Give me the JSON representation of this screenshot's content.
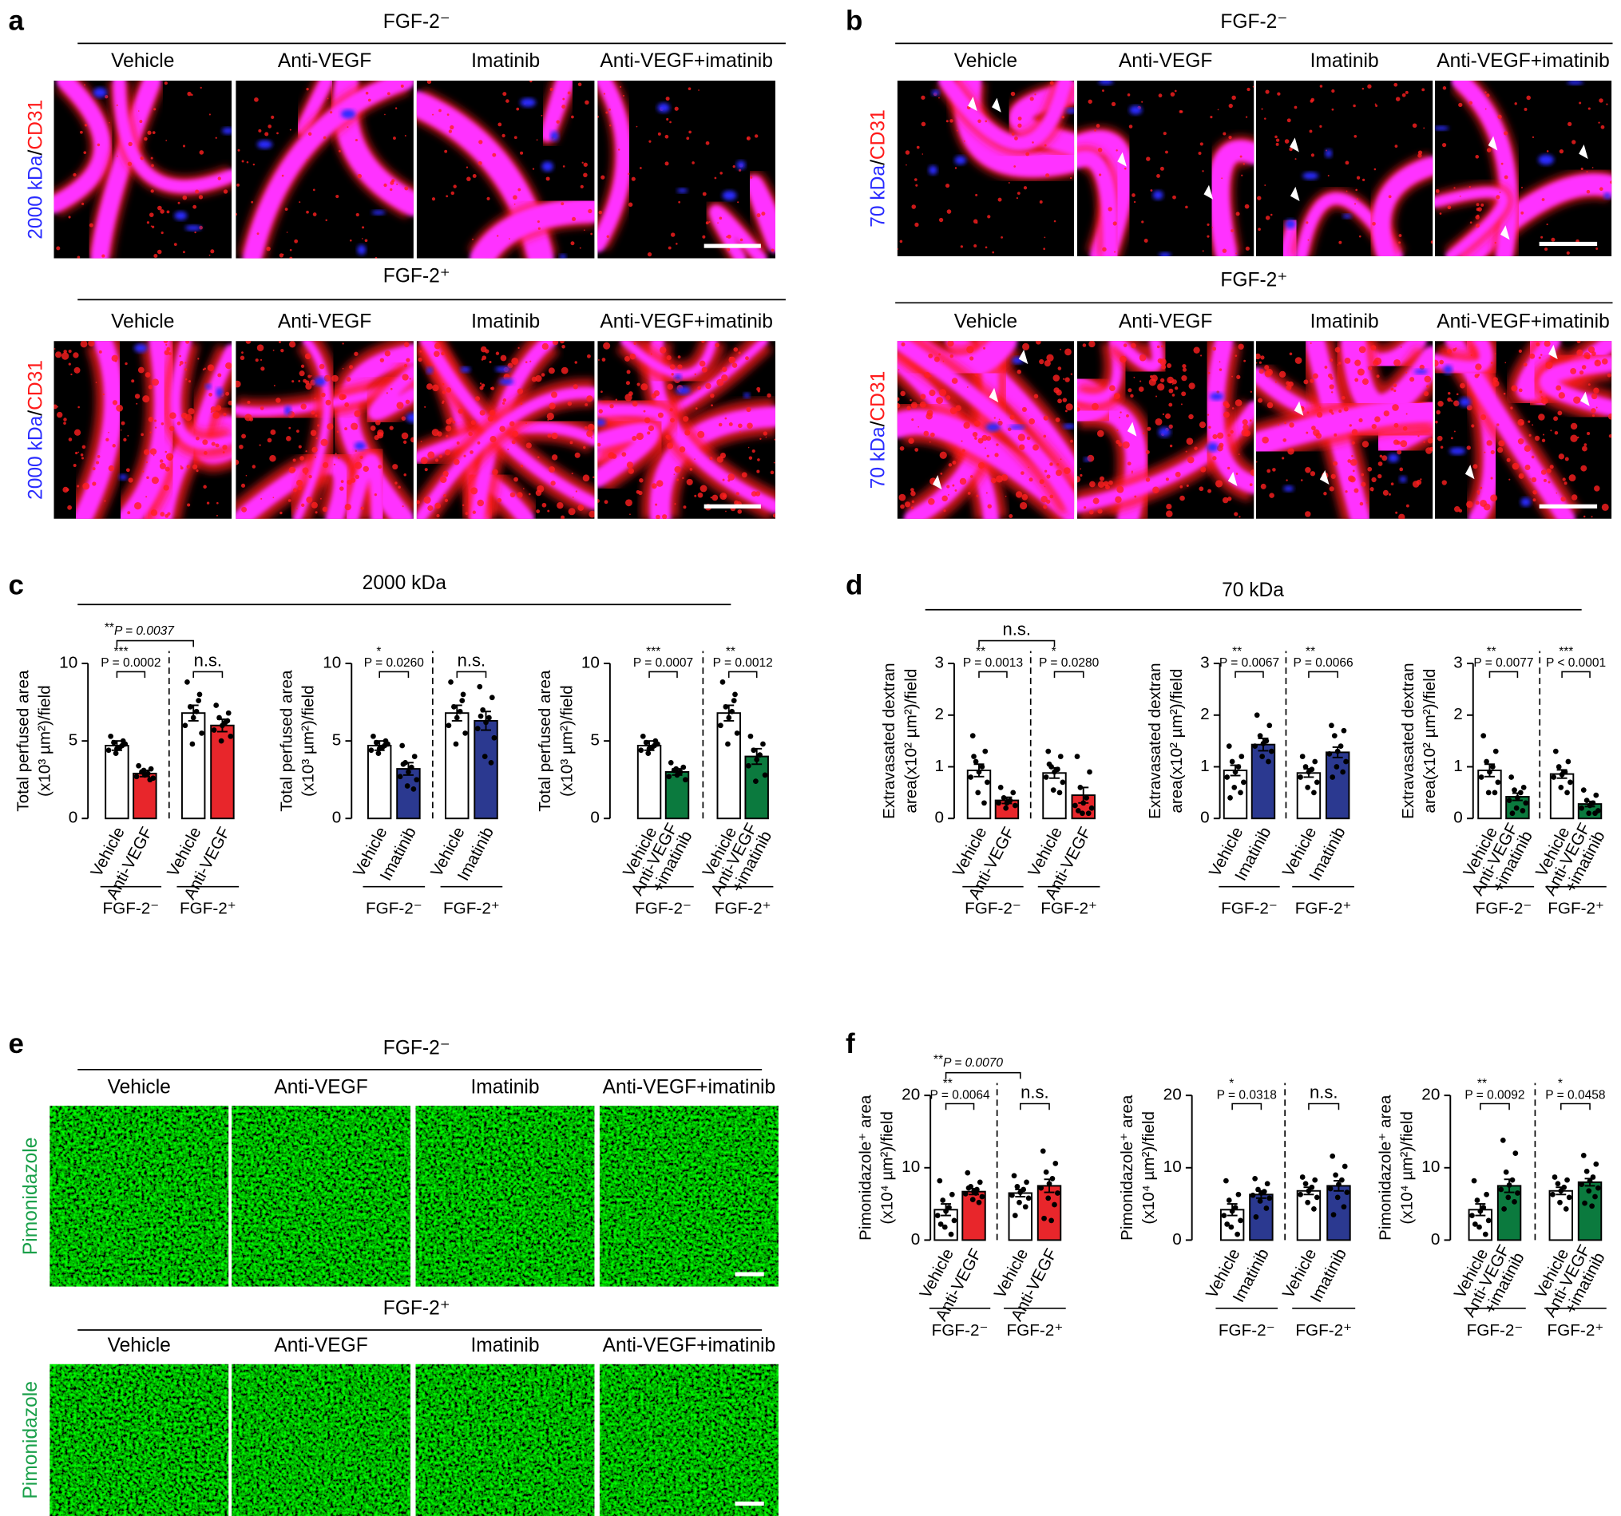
{
  "figure_panels": {
    "a": {
      "letter": "a",
      "stain": [
        "2000 kDa",
        "/",
        "CD31"
      ],
      "rows": [
        {
          "condition": "FGF-2⁻",
          "treatments": [
            "Vehicle",
            "Anti-VEGF",
            "Imatinib",
            "Anti-VEGF+imatinib"
          ]
        },
        {
          "condition": "FGF-2⁺",
          "treatments": [
            "Vehicle",
            "Anti-VEGF",
            "Imatinib",
            "Anti-VEGF+imatinib"
          ]
        }
      ]
    },
    "b": {
      "letter": "b",
      "stain": [
        "70 kDa",
        "/",
        "CD31"
      ],
      "rows": [
        {
          "condition": "FGF-2⁻",
          "treatments": [
            "Vehicle",
            "Anti-VEGF",
            "Imatinib",
            "Anti-VEGF+imatinib"
          ]
        },
        {
          "condition": "FGF-2⁺",
          "treatments": [
            "Vehicle",
            "Anti-VEGF",
            "Imatinib",
            "Anti-VEGF+imatinib"
          ]
        }
      ]
    },
    "c": {
      "letter": "c",
      "title": "2000 kDa"
    },
    "d": {
      "letter": "d",
      "title": "70 kDa"
    },
    "e": {
      "letter": "e",
      "stain": [
        "Pimonidazole"
      ],
      "rows": [
        {
          "condition": "FGF-2⁻",
          "treatments": [
            "Vehicle",
            "Anti-VEGF",
            "Imatinib",
            "Anti-VEGF+imatinib"
          ]
        },
        {
          "condition": "FGF-2⁺",
          "treatments": [
            "Vehicle",
            "Anti-VEGF",
            "Imatinib",
            "Anti-VEGF+imatinib"
          ]
        }
      ]
    },
    "f": {
      "letter": "f"
    }
  },
  "chart_data": [
    {
      "type": "bar",
      "ylabel": [
        "Total perfused area",
        "(x10³ µm²)/field"
      ],
      "categories": [
        [
          "Vehicle"
        ],
        [
          "Anti-VEGF"
        ],
        [
          "Vehicle"
        ],
        [
          "Anti-VEGF"
        ]
      ],
      "groups": [
        "FGF-2⁻",
        "FGF-2⁺"
      ],
      "colors": [
        "#ffffff",
        "#e8262b",
        "#ffffff",
        "#e8262b"
      ],
      "values": [
        4.7,
        2.9,
        6.8,
        6.0
      ],
      "errors": [
        0.3,
        0.2,
        0.5,
        0.4
      ],
      "points": [
        [
          5.3,
          5.0,
          4.9,
          4.6,
          4.5,
          4.4,
          4.8,
          4.2,
          4.7
        ],
        [
          3.4,
          3.2,
          3.0,
          2.9,
          2.8,
          2.7,
          2.6,
          3.1,
          2.5
        ],
        [
          8.8,
          8.0,
          7.2,
          6.9,
          6.5,
          6.0,
          5.5,
          4.8,
          7.6
        ],
        [
          7.3,
          6.8,
          6.5,
          6.2,
          6.0,
          5.7,
          5.3,
          5.0,
          6.3
        ]
      ],
      "ylim": [
        0,
        10
      ],
      "yticks": [
        0,
        5,
        10
      ],
      "annotations": [
        {
          "pair": [
            0,
            1
          ],
          "stars": "***",
          "text": "P = 0.0002"
        },
        {
          "pair": [
            2,
            3
          ],
          "text": "n.s."
        },
        {
          "pair": [
            0,
            2
          ],
          "stars": "**",
          "text": "P = 0.0037"
        }
      ]
    },
    {
      "type": "bar",
      "ylabel": [
        "Total perfused area",
        "(x10³ µm²)/field"
      ],
      "categories": [
        [
          "Vehicle"
        ],
        [
          "Imatinib"
        ],
        [
          "Vehicle"
        ],
        [
          "Imatinib"
        ]
      ],
      "groups": [
        "FGF-2⁻",
        "FGF-2⁺"
      ],
      "colors": [
        "#ffffff",
        "#2b3990",
        "#ffffff",
        "#2b3990"
      ],
      "values": [
        4.7,
        3.2,
        6.8,
        6.3
      ],
      "errors": [
        0.3,
        0.4,
        0.5,
        0.6
      ],
      "points": [
        [
          5.3,
          5.0,
          4.9,
          4.6,
          4.5,
          4.4,
          4.8,
          4.2,
          4.7
        ],
        [
          4.7,
          4.0,
          3.6,
          3.3,
          3.0,
          2.7,
          2.5,
          2.1,
          1.9,
          3.5
        ],
        [
          8.8,
          8.0,
          7.2,
          6.9,
          6.5,
          6.0,
          5.5,
          4.8,
          7.6
        ],
        [
          8.5,
          7.8,
          7.0,
          6.5,
          6.2,
          5.8,
          5.2,
          4.0,
          3.6,
          6.6
        ]
      ],
      "ylim": [
        0,
        10
      ],
      "yticks": [
        0,
        5,
        10
      ],
      "annotations": [
        {
          "pair": [
            0,
            1
          ],
          "stars": "*",
          "text": "P = 0.0260"
        },
        {
          "pair": [
            2,
            3
          ],
          "text": "n.s."
        }
      ]
    },
    {
      "type": "bar",
      "ylabel": [
        "Total perfused area",
        "(x10³ µm²)/field"
      ],
      "categories": [
        [
          "Vehicle"
        ],
        [
          "Anti-VEGF",
          "+imatinib"
        ],
        [
          "Vehicle"
        ],
        [
          "Anti-VEGF",
          "+imatinib"
        ]
      ],
      "groups": [
        "FGF-2⁻",
        "FGF-2⁺"
      ],
      "colors": [
        "#ffffff",
        "#0b7a3e",
        "#ffffff",
        "#0b7a3e"
      ],
      "values": [
        4.7,
        3.0,
        6.8,
        4.0
      ],
      "errors": [
        0.3,
        0.2,
        0.5,
        0.5
      ],
      "points": [
        [
          5.3,
          5.0,
          4.9,
          4.6,
          4.5,
          4.4,
          4.8,
          4.2,
          4.7
        ],
        [
          3.6,
          3.3,
          3.1,
          3.0,
          2.8,
          2.7,
          2.5,
          3.2
        ],
        [
          8.8,
          8.0,
          7.2,
          6.9,
          6.5,
          6.0,
          5.5,
          4.8,
          7.6
        ],
        [
          5.3,
          4.8,
          4.4,
          4.1,
          3.8,
          3.4,
          2.8,
          2.4
        ]
      ],
      "ylim": [
        0,
        10
      ],
      "yticks": [
        0,
        5,
        10
      ],
      "annotations": [
        {
          "pair": [
            0,
            1
          ],
          "stars": "***",
          "text": "P = 0.0007"
        },
        {
          "pair": [
            2,
            3
          ],
          "stars": "**",
          "text": "P = 0.0012"
        }
      ]
    },
    {
      "type": "bar",
      "ylabel": [
        "Extravasated dextran",
        "area(x10² µm²)/field"
      ],
      "categories": [
        [
          "Vehicle"
        ],
        [
          "Anti-VEGF"
        ],
        [
          "Vehicle"
        ],
        [
          "Anti-VEGF"
        ]
      ],
      "groups": [
        "FGF-2⁻",
        "FGF-2⁺"
      ],
      "colors": [
        "#ffffff",
        "#e8262b",
        "#ffffff",
        "#e8262b"
      ],
      "values": [
        0.93,
        0.35,
        0.88,
        0.45
      ],
      "errors": [
        0.12,
        0.06,
        0.1,
        0.15
      ],
      "points": [
        [
          1.6,
          1.3,
          1.1,
          1.0,
          0.9,
          0.8,
          0.7,
          0.5,
          0.3,
          1.2
        ],
        [
          0.6,
          0.5,
          0.4,
          0.35,
          0.3,
          0.3,
          0.25,
          0.2
        ],
        [
          1.3,
          1.2,
          1.0,
          0.95,
          0.9,
          0.8,
          0.7,
          0.55,
          0.5,
          1.05
        ],
        [
          1.2,
          0.9,
          0.6,
          0.4,
          0.3,
          0.25,
          0.2,
          0.1,
          0.1,
          0.15
        ]
      ],
      "ylim": [
        0,
        3
      ],
      "yticks": [
        0,
        1,
        2,
        3
      ],
      "annotations": [
        {
          "pair": [
            0,
            1
          ],
          "stars": "**",
          "text": "P = 0.0013"
        },
        {
          "pair": [
            2,
            3
          ],
          "stars": "*",
          "text": "P = 0.0280"
        },
        {
          "pair": [
            0,
            2
          ],
          "text": "n.s."
        }
      ]
    },
    {
      "type": "bar",
      "ylabel": [
        "Extravasated dextran",
        "area(x10² µm²)/field"
      ],
      "categories": [
        [
          "Vehicle"
        ],
        [
          "Imatinib"
        ],
        [
          "Vehicle"
        ],
        [
          "Imatinib"
        ]
      ],
      "groups": [
        "FGF-2⁻",
        "FGF-2⁺"
      ],
      "colors": [
        "#ffffff",
        "#2b3990",
        "#ffffff",
        "#2b3990"
      ],
      "values": [
        0.93,
        1.43,
        0.88,
        1.28
      ],
      "errors": [
        0.1,
        0.12,
        0.08,
        0.1
      ],
      "points": [
        [
          1.4,
          1.2,
          1.1,
          1.0,
          0.9,
          0.8,
          0.7,
          0.6,
          0.5,
          0.4
        ],
        [
          2.0,
          1.8,
          1.6,
          1.5,
          1.45,
          1.4,
          1.3,
          1.2,
          1.1
        ],
        [
          1.2,
          1.1,
          1.0,
          0.95,
          0.9,
          0.8,
          0.7,
          0.6,
          0.5
        ],
        [
          1.8,
          1.7,
          1.6,
          1.4,
          1.3,
          1.25,
          1.1,
          1.0,
          0.9,
          0.8
        ]
      ],
      "ylim": [
        0,
        3
      ],
      "yticks": [
        0,
        1,
        2,
        3
      ],
      "annotations": [
        {
          "pair": [
            0,
            1
          ],
          "stars": "**",
          "text": "P = 0.0067"
        },
        {
          "pair": [
            2,
            3
          ],
          "stars": "**",
          "text": "P = 0.0066"
        }
      ]
    },
    {
      "type": "bar",
      "ylabel": [
        "Extravasated dextran",
        "area(x10² µm²)/field"
      ],
      "categories": [
        [
          "Vehicle"
        ],
        [
          "Anti-VEGF",
          "+imatinib"
        ],
        [
          "Vehicle"
        ],
        [
          "Anti-VEGF",
          "+imatinib"
        ]
      ],
      "groups": [
        "FGF-2⁻",
        "FGF-2⁺"
      ],
      "colors": [
        "#ffffff",
        "#0b7a3e",
        "#ffffff",
        "#0b7a3e"
      ],
      "values": [
        0.93,
        0.42,
        0.86,
        0.28
      ],
      "errors": [
        0.12,
        0.07,
        0.08,
        0.05
      ],
      "points": [
        [
          1.6,
          1.3,
          1.1,
          1.0,
          0.9,
          0.8,
          0.7,
          0.5,
          0.5
        ],
        [
          0.8,
          0.6,
          0.55,
          0.5,
          0.4,
          0.35,
          0.3,
          0.2,
          0.15,
          0.1
        ],
        [
          1.3,
          1.1,
          1.0,
          0.9,
          0.85,
          0.8,
          0.7,
          0.6,
          0.5
        ],
        [
          0.55,
          0.45,
          0.35,
          0.3,
          0.25,
          0.2,
          0.15,
          0.1,
          0.1
        ]
      ],
      "ylim": [
        0,
        3
      ],
      "yticks": [
        0,
        1,
        2,
        3
      ],
      "annotations": [
        {
          "pair": [
            0,
            1
          ],
          "stars": "**",
          "text": "P = 0.0077"
        },
        {
          "pair": [
            2,
            3
          ],
          "stars": "***",
          "text": "P < 0.0001"
        }
      ]
    },
    {
      "type": "bar",
      "ylabel": [
        "Pimonidazole⁺ area",
        "(x10⁴ µm²)/field"
      ],
      "categories": [
        [
          "Vehicle"
        ],
        [
          "Anti-VEGF"
        ],
        [
          "Vehicle"
        ],
        [
          "Anti-VEGF"
        ]
      ],
      "groups": [
        "FGF-2⁻",
        "FGF-2⁺"
      ],
      "colors": [
        "#ffffff",
        "#e8262b",
        "#ffffff",
        "#e8262b"
      ],
      "values": [
        4.2,
        6.7,
        6.5,
        7.5
      ],
      "errors": [
        0.8,
        0.4,
        0.5,
        0.9
      ],
      "points": [
        [
          8.2,
          6.3,
          5.5,
          4.5,
          4.0,
          3.4,
          2.7,
          1.8,
          0.8,
          2.2
        ],
        [
          9.3,
          8.0,
          7.4,
          7.0,
          6.7,
          6.4,
          6.0,
          5.6,
          5.2,
          7.2,
          6.5
        ],
        [
          8.9,
          8.0,
          7.4,
          7.0,
          6.6,
          6.2,
          5.8,
          5.2,
          4.6,
          3.4
        ],
        [
          12.3,
          10.6,
          9.4,
          8.5,
          7.8,
          7.2,
          6.5,
          5.8,
          4.9,
          3.0,
          2.7
        ]
      ],
      "ylim": [
        0,
        20
      ],
      "yticks": [
        0,
        10,
        20
      ],
      "annotations": [
        {
          "pair": [
            0,
            1
          ],
          "stars": "**",
          "text": "P = 0.0064"
        },
        {
          "pair": [
            2,
            3
          ],
          "text": "n.s."
        },
        {
          "pair": [
            0,
            2
          ],
          "stars": "**",
          "text": "P = 0.0070"
        }
      ]
    },
    {
      "type": "bar",
      "ylabel": [
        "Pimonidazole⁺ area",
        "(x10⁴ µm²)/field"
      ],
      "categories": [
        [
          "Vehicle"
        ],
        [
          "Imatinib"
        ],
        [
          "Vehicle"
        ],
        [
          "Imatinib"
        ]
      ],
      "groups": [
        "FGF-2⁻",
        "FGF-2⁺"
      ],
      "colors": [
        "#ffffff",
        "#2b3990",
        "#ffffff",
        "#2b3990"
      ],
      "values": [
        4.2,
        6.3,
        6.8,
        7.5
      ],
      "errors": [
        0.8,
        0.5,
        0.5,
        0.7
      ],
      "points": [
        [
          8.2,
          6.3,
          5.5,
          4.5,
          4.0,
          3.4,
          2.7,
          1.8,
          0.8,
          2.2
        ],
        [
          8.5,
          7.8,
          7.0,
          6.7,
          6.5,
          6.2,
          5.8,
          5.4,
          4.4,
          3.2
        ],
        [
          8.7,
          8.3,
          7.8,
          7.3,
          6.8,
          6.3,
          5.9,
          5.2,
          4.3
        ],
        [
          11.6,
          10.2,
          9.0,
          8.3,
          7.7,
          7.1,
          6.6,
          5.9,
          4.6,
          3.5
        ]
      ],
      "ylim": [
        0,
        20
      ],
      "yticks": [
        0,
        10,
        20
      ],
      "annotations": [
        {
          "pair": [
            0,
            1
          ],
          "stars": "*",
          "text": "P = 0.0318"
        },
        {
          "pair": [
            2,
            3
          ],
          "text": "n.s."
        }
      ]
    },
    {
      "type": "bar",
      "ylabel": [
        "Pimonidazole⁺ area",
        "(x10⁴ µm²)/field"
      ],
      "categories": [
        [
          "Vehicle"
        ],
        [
          "Anti-VEGF",
          "+imatinib"
        ],
        [
          "Vehicle"
        ],
        [
          "Anti-VEGF",
          "+imatinib"
        ]
      ],
      "groups": [
        "FGF-2⁻",
        "FGF-2⁺"
      ],
      "colors": [
        "#ffffff",
        "#0b7a3e",
        "#ffffff",
        "#0b7a3e"
      ],
      "values": [
        4.2,
        7.5,
        6.8,
        8.0
      ],
      "errors": [
        0.8,
        0.9,
        0.5,
        0.5
      ],
      "points": [
        [
          8.2,
          6.3,
          5.5,
          4.5,
          4.0,
          3.4,
          2.7,
          1.8,
          0.8,
          2.2
        ],
        [
          13.8,
          12.0,
          9.4,
          8.3,
          7.6,
          7.0,
          6.5,
          5.9,
          5.3,
          4.3
        ],
        [
          8.7,
          8.3,
          7.8,
          7.3,
          6.8,
          6.3,
          5.9,
          5.2,
          4.3
        ],
        [
          11.7,
          10.5,
          9.5,
          8.7,
          8.2,
          7.7,
          7.2,
          6.8,
          6.0,
          5.1,
          4.7
        ]
      ],
      "ylim": [
        0,
        20
      ],
      "yticks": [
        0,
        10,
        20
      ],
      "annotations": [
        {
          "pair": [
            0,
            1
          ],
          "stars": "**",
          "text": "P = 0.0092"
        },
        {
          "pair": [
            2,
            3
          ],
          "stars": "*",
          "text": "P = 0.0458"
        }
      ]
    }
  ]
}
